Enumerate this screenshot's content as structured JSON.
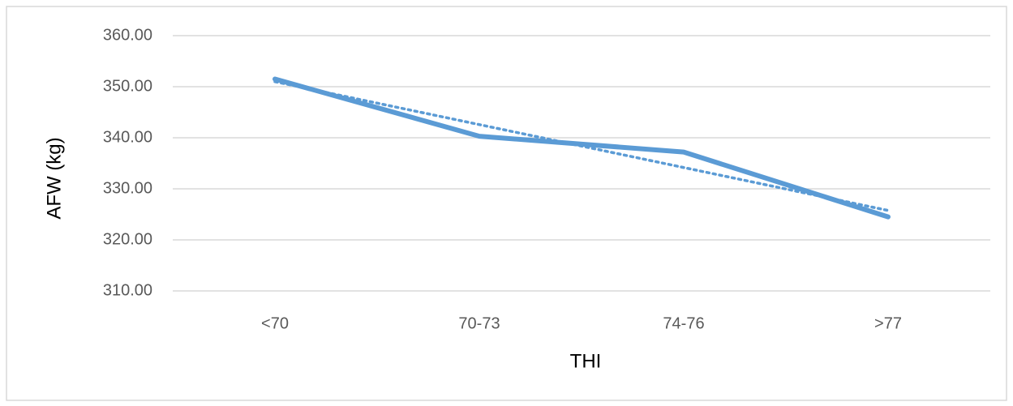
{
  "chart_data": {
    "type": "line",
    "x_label": "THI",
    "y_label": "AFW (kg)",
    "categories": [
      "<70",
      "70-73",
      "74-76",
      ">77"
    ],
    "series": [
      {
        "name": "AFW",
        "color": "#5b9bd5",
        "values": [
          351.5,
          340.3,
          337.2,
          324.5
        ]
      }
    ],
    "trendline": "linear",
    "ylim": [
      310,
      360
    ],
    "yticks": [
      {
        "value": 310,
        "label": "310.00"
      },
      {
        "value": 320,
        "label": "320.00"
      },
      {
        "value": 330,
        "label": "330.00"
      },
      {
        "value": 340,
        "label": "340.00"
      },
      {
        "value": 350,
        "label": "350.00"
      },
      {
        "value": 360,
        "label": "360.00"
      }
    ],
    "grid": true
  }
}
